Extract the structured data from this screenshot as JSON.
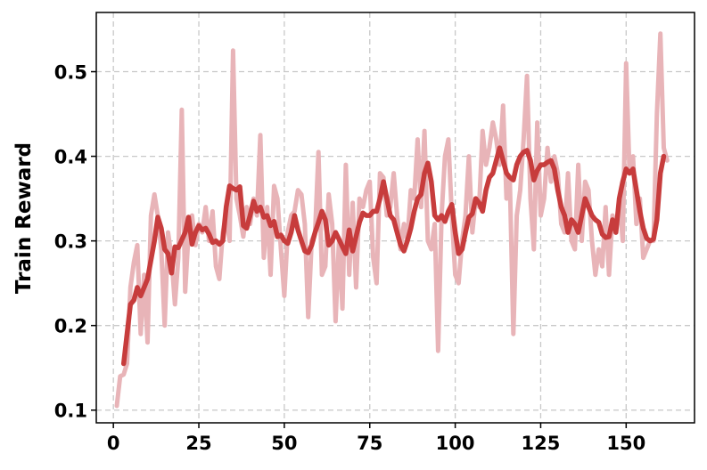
{
  "chart_data": {
    "type": "line",
    "title": "",
    "xlabel": "",
    "ylabel": "Train Reward",
    "xlim": [
      -5,
      170
    ],
    "ylim": [
      0.085,
      0.57
    ],
    "xticks": [
      0,
      25,
      50,
      75,
      100,
      125,
      150
    ],
    "yticks": [
      0.1,
      0.2,
      0.3,
      0.4,
      0.5
    ],
    "xtick_labels": [
      "0",
      "25",
      "50",
      "75",
      "100",
      "125",
      "150"
    ],
    "ytick_labels": [
      "0.1",
      "0.2",
      "0.3",
      "0.4",
      "0.5"
    ],
    "grid": true,
    "series": [
      {
        "color": "#e8b4b8",
        "x": [
          1,
          2,
          3,
          4,
          5,
          6,
          7,
          8,
          9,
          10,
          11,
          12,
          13,
          14,
          15,
          16,
          17,
          18,
          19,
          20,
          21,
          22,
          23,
          24,
          25,
          26,
          27,
          28,
          29,
          30,
          31,
          32,
          33,
          34,
          35,
          36,
          37,
          38,
          39,
          40,
          41,
          42,
          43,
          44,
          45,
          46,
          47,
          48,
          49,
          50,
          51,
          52,
          53,
          54,
          55,
          56,
          57,
          58,
          59,
          60,
          61,
          62,
          63,
          64,
          65,
          66,
          67,
          68,
          69,
          70,
          71,
          72,
          73,
          74,
          75,
          76,
          77,
          78,
          79,
          80,
          81,
          82,
          83,
          84,
          85,
          86,
          87,
          88,
          89,
          90,
          91,
          92,
          93,
          94,
          95,
          96,
          97,
          98,
          99,
          100,
          101,
          102,
          103,
          104,
          105,
          106,
          107,
          108,
          109,
          110,
          111,
          112,
          113,
          114,
          115,
          116,
          117,
          118,
          119,
          120,
          121,
          122,
          123,
          124,
          125,
          126,
          127,
          128,
          129,
          130,
          131,
          132,
          133,
          134,
          135,
          136,
          137,
          138,
          139,
          140,
          141,
          142,
          143,
          144,
          145,
          146,
          147,
          148,
          149,
          150,
          151,
          152,
          153,
          154,
          155,
          156,
          157,
          158,
          159,
          160,
          161,
          162
        ],
        "y": [
          0.105,
          0.14,
          0.142,
          0.155,
          0.245,
          0.275,
          0.295,
          0.19,
          0.26,
          0.18,
          0.33,
          0.355,
          0.33,
          0.29,
          0.2,
          0.31,
          0.28,
          0.225,
          0.28,
          0.455,
          0.24,
          0.31,
          0.33,
          0.295,
          0.32,
          0.31,
          0.34,
          0.3,
          0.335,
          0.27,
          0.255,
          0.31,
          0.33,
          0.3,
          0.525,
          0.35,
          0.33,
          0.305,
          0.34,
          0.32,
          0.35,
          0.33,
          0.425,
          0.28,
          0.34,
          0.26,
          0.365,
          0.35,
          0.29,
          0.235,
          0.31,
          0.33,
          0.335,
          0.36,
          0.355,
          0.32,
          0.21,
          0.3,
          0.31,
          0.405,
          0.26,
          0.27,
          0.355,
          0.32,
          0.205,
          0.3,
          0.22,
          0.39,
          0.26,
          0.345,
          0.245,
          0.35,
          0.34,
          0.36,
          0.37,
          0.28,
          0.25,
          0.38,
          0.375,
          0.33,
          0.34,
          0.38,
          0.33,
          0.29,
          0.32,
          0.3,
          0.36,
          0.35,
          0.42,
          0.34,
          0.43,
          0.3,
          0.29,
          0.32,
          0.17,
          0.33,
          0.4,
          0.42,
          0.33,
          0.26,
          0.25,
          0.3,
          0.33,
          0.4,
          0.31,
          0.35,
          0.34,
          0.43,
          0.39,
          0.41,
          0.44,
          0.42,
          0.39,
          0.46,
          0.35,
          0.37,
          0.19,
          0.33,
          0.36,
          0.42,
          0.495,
          0.35,
          0.29,
          0.44,
          0.33,
          0.35,
          0.41,
          0.37,
          0.4,
          0.38,
          0.32,
          0.31,
          0.38,
          0.3,
          0.29,
          0.39,
          0.3,
          0.37,
          0.36,
          0.3,
          0.26,
          0.29,
          0.27,
          0.34,
          0.26,
          0.33,
          0.31,
          0.35,
          0.3,
          0.51,
          0.38,
          0.4,
          0.32,
          0.35,
          0.28,
          0.29,
          0.3,
          0.3,
          0.45,
          0.545,
          0.41,
          0.395
        ]
      },
      {
        "color": "#c73c3c",
        "x": [
          3,
          5,
          6,
          7,
          8,
          10,
          12,
          13,
          14,
          15,
          16,
          17,
          18,
          19,
          21,
          22,
          23,
          24,
          25,
          26,
          27,
          28,
          29,
          30,
          31,
          32,
          33,
          34,
          35,
          36,
          37,
          38,
          39,
          40,
          41,
          42,
          43,
          44,
          45,
          46,
          47,
          48,
          49,
          50,
          51,
          52,
          53,
          54,
          55,
          56,
          57,
          58,
          59,
          60,
          61,
          62,
          63,
          64,
          65,
          66,
          67,
          68,
          69,
          70,
          71,
          72,
          73,
          74,
          75,
          76,
          77,
          78,
          79,
          80,
          81,
          82,
          83,
          84,
          85,
          86,
          87,
          88,
          89,
          90,
          91,
          92,
          93,
          94,
          95,
          96,
          97,
          98,
          99,
          100,
          101,
          102,
          103,
          104,
          105,
          106,
          107,
          108,
          109,
          110,
          111,
          112,
          113,
          114,
          115,
          116,
          117,
          118,
          119,
          120,
          121,
          122,
          123,
          124,
          125,
          126,
          127,
          128,
          129,
          130,
          131,
          132,
          133,
          134,
          135,
          136,
          137,
          138,
          139,
          140,
          141,
          142,
          143,
          144,
          145,
          146,
          147,
          148,
          149,
          150,
          151,
          152,
          153,
          154,
          155,
          156,
          157,
          158,
          159,
          160,
          161
        ],
        "y": [
          0.155,
          0.225,
          0.23,
          0.245,
          0.235,
          0.255,
          0.3,
          0.328,
          0.315,
          0.29,
          0.285,
          0.262,
          0.293,
          0.292,
          0.31,
          0.328,
          0.296,
          0.31,
          0.318,
          0.313,
          0.315,
          0.308,
          0.298,
          0.3,
          0.296,
          0.3,
          0.34,
          0.365,
          0.362,
          0.36,
          0.364,
          0.318,
          0.315,
          0.33,
          0.347,
          0.335,
          0.34,
          0.328,
          0.33,
          0.318,
          0.323,
          0.305,
          0.307,
          0.3,
          0.297,
          0.31,
          0.33,
          0.313,
          0.3,
          0.288,
          0.286,
          0.295,
          0.31,
          0.322,
          0.335,
          0.325,
          0.295,
          0.3,
          0.31,
          0.302,
          0.293,
          0.285,
          0.313,
          0.288,
          0.305,
          0.322,
          0.333,
          0.33,
          0.33,
          0.335,
          0.335,
          0.35,
          0.37,
          0.35,
          0.33,
          0.325,
          0.31,
          0.295,
          0.288,
          0.3,
          0.315,
          0.335,
          0.35,
          0.355,
          0.38,
          0.392,
          0.37,
          0.33,
          0.325,
          0.33,
          0.323,
          0.335,
          0.343,
          0.31,
          0.285,
          0.29,
          0.31,
          0.328,
          0.332,
          0.35,
          0.345,
          0.335,
          0.36,
          0.375,
          0.38,
          0.395,
          0.41,
          0.395,
          0.38,
          0.375,
          0.372,
          0.39,
          0.4,
          0.405,
          0.407,
          0.395,
          0.372,
          0.383,
          0.39,
          0.39,
          0.393,
          0.395,
          0.385,
          0.36,
          0.34,
          0.33,
          0.31,
          0.325,
          0.32,
          0.31,
          0.33,
          0.35,
          0.34,
          0.33,
          0.325,
          0.322,
          0.308,
          0.304,
          0.305,
          0.325,
          0.31,
          0.35,
          0.37,
          0.385,
          0.38,
          0.385,
          0.36,
          0.335,
          0.315,
          0.303,
          0.3,
          0.302,
          0.325,
          0.38,
          0.4
        ]
      }
    ]
  }
}
